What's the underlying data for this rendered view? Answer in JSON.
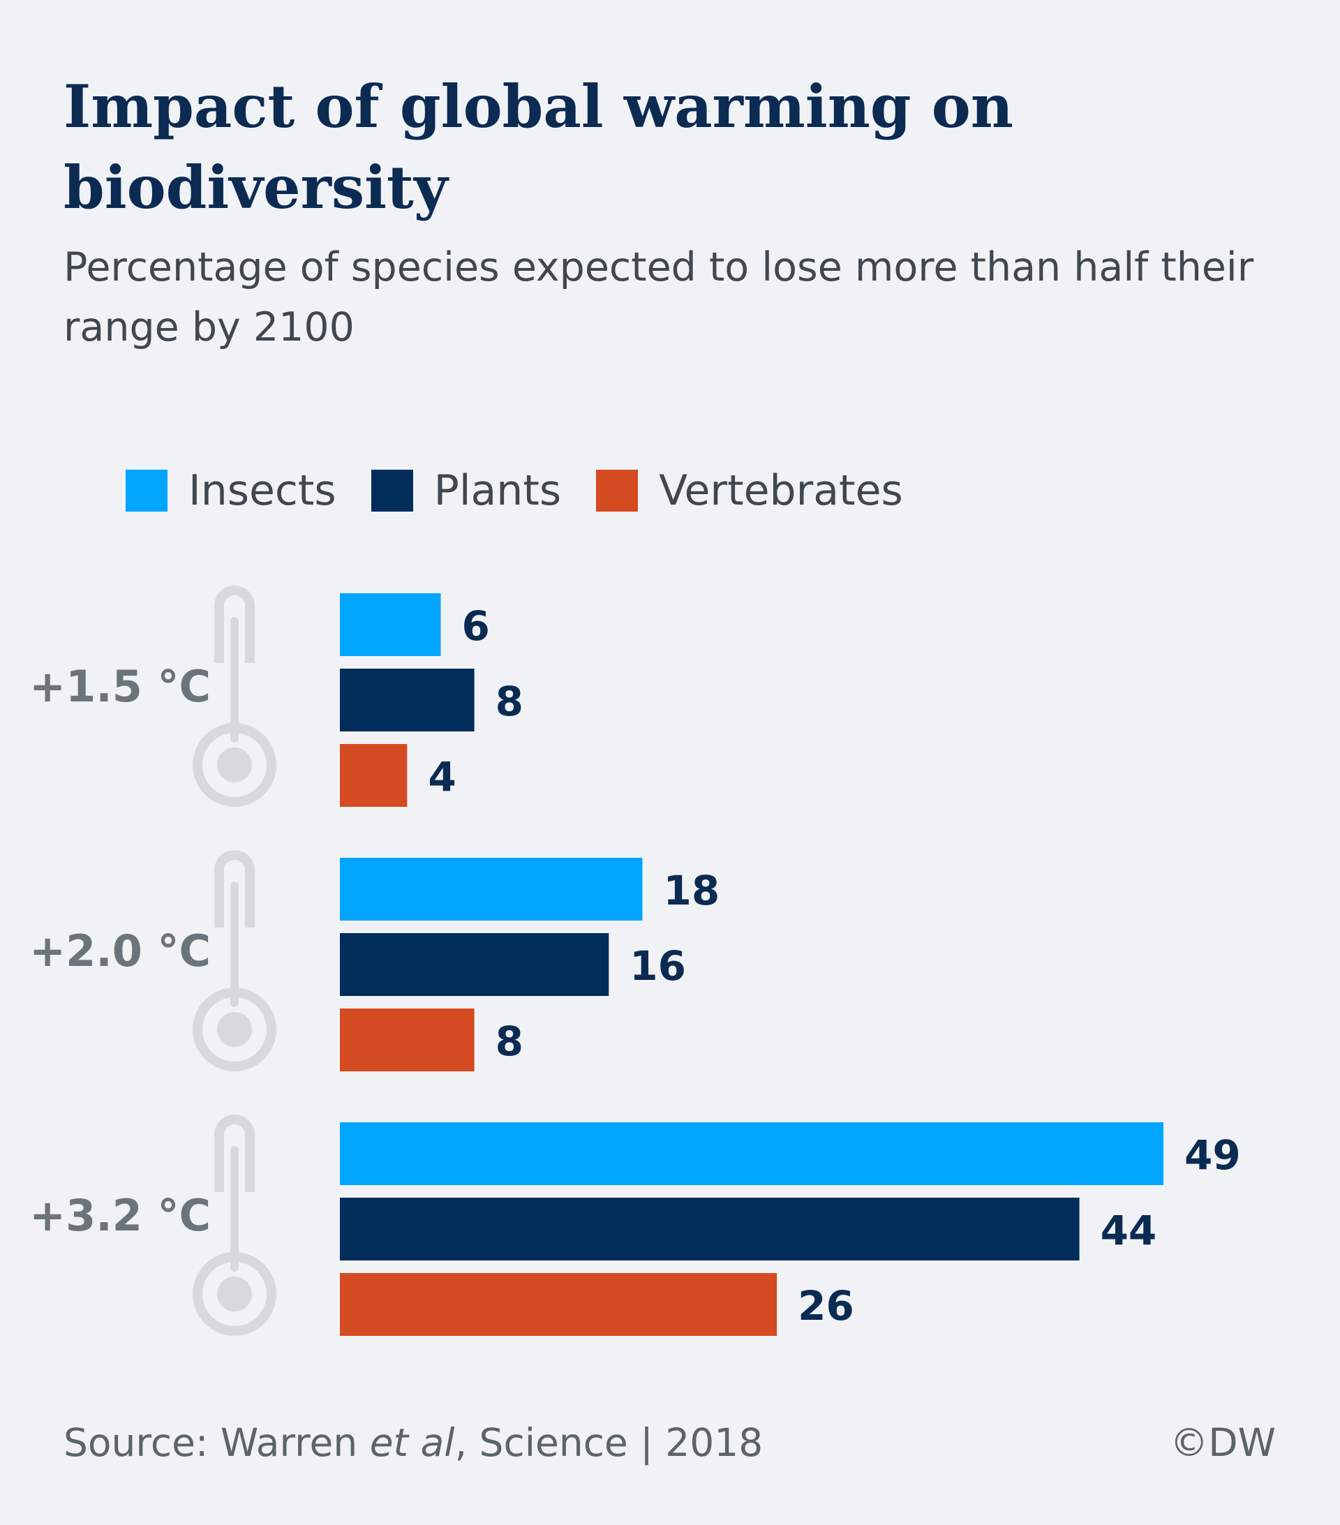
{
  "title": "Impact of global warming on biodiversity",
  "subtitle": "Percentage of species expected to lose more than half their range by 2100",
  "chart_data": {
    "type": "bar",
    "orientation": "horizontal",
    "categories": [
      "+1.5 °C",
      "+2.0 °C",
      "+3.2 °C"
    ],
    "series": [
      {
        "name": "Insects",
        "values": [
          6,
          18,
          49
        ],
        "color": "#00a5ff"
      },
      {
        "name": "Plants",
        "values": [
          8,
          16,
          44
        ],
        "color": "#002d5a"
      },
      {
        "name": "Vertebrates",
        "values": [
          4,
          8,
          26
        ],
        "color": "#d44a21"
      }
    ],
    "xlim": [
      0,
      49
    ],
    "grid": false,
    "legend": "top-left",
    "data_labels": true,
    "category_icon": "thermometer-icon"
  },
  "source": {
    "prefix": "Source: Warren ",
    "italic": "et al",
    "suffix": ", Science | 2018"
  },
  "credit": "©DW",
  "colors": {
    "background": "#f1f2f5",
    "title": "#0c2b53",
    "value_label": "#0c2b53",
    "category_label": "#6b737b",
    "thermometer": "#d6dade"
  }
}
